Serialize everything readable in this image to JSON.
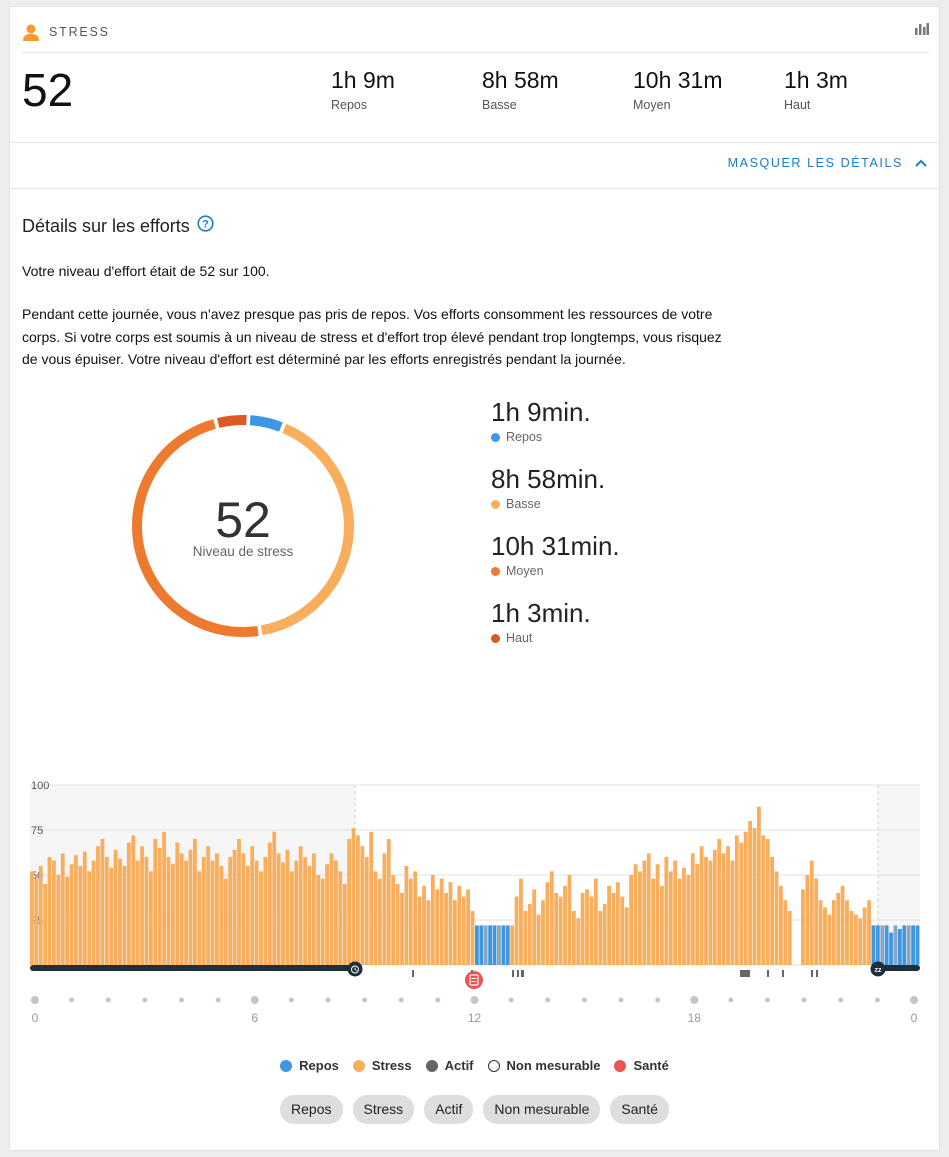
{
  "header": {
    "title": "STRESS"
  },
  "summary": {
    "score": "52",
    "stats": [
      {
        "value": "1h 9m",
        "label": "Repos"
      },
      {
        "value": "8h 58m",
        "label": "Basse"
      },
      {
        "value": "10h 31m",
        "label": "Moyen"
      },
      {
        "value": "1h 3m",
        "label": "Haut"
      }
    ]
  },
  "toggle_label": "MASQUER LES DÉTAILS",
  "details": {
    "title": "Détails sur les efforts",
    "intro": "Votre niveau d'effort était de 52 sur 100.",
    "paragraph_lines": [
      "Pendant cette journée, vous n'avez presque pas pris de repos. Vos efforts consomment les ressources de votre",
      "corps. Si votre corps est soumis à un niveau de stress et d'effort trop élevé pendant trop longtemps, vous risquez",
      "de vous épuiser. Votre niveau d'effort est déterminé par les efforts enregistrés pendant la journée."
    ]
  },
  "donut": {
    "value": "52",
    "label": "Niveau de stress",
    "legend": [
      {
        "value": "1h 9min.",
        "label": "Repos",
        "color": "#3d97e3",
        "minutes": 69
      },
      {
        "value": "8h 58min.",
        "label": "Basse",
        "color": "#f8ae5c",
        "minutes": 538
      },
      {
        "value": "10h 31min.",
        "label": "Moyen",
        "color": "#ee7a30",
        "minutes": 631
      },
      {
        "value": "1h 3min.",
        "label": "Haut",
        "color": "#dd5a22",
        "minutes": 63
      }
    ]
  },
  "chart_data": {
    "type": "bar",
    "y_ticks": [
      "100",
      "75",
      "50",
      "25"
    ],
    "ylim": [
      0,
      100
    ],
    "x_ticks": [
      "0",
      "6",
      "12",
      "18",
      "0"
    ],
    "series_colors": {
      "Repos": "#3d97e3",
      "Stress": "#f8ae5c",
      "Actif": "#666666",
      "Santé": "#ef5350"
    },
    "bars_stress": [
      52,
      48,
      55,
      45,
      60,
      58,
      50,
      62,
      49,
      56,
      61,
      55,
      63,
      52,
      58,
      66,
      70,
      60,
      54,
      64,
      59,
      55,
      68,
      72,
      58,
      66,
      60,
      52,
      70,
      65,
      74,
      60,
      56,
      68,
      62,
      58,
      64,
      70,
      52,
      60,
      66,
      58,
      62,
      55,
      48,
      60,
      64,
      70,
      62,
      55,
      66,
      58,
      52,
      60,
      68,
      74,
      62,
      57,
      64,
      52,
      58,
      66,
      60,
      55,
      62,
      50,
      48,
      56,
      62,
      58,
      52,
      45,
      70,
      76,
      72,
      66,
      60,
      74,
      52,
      48,
      62,
      70,
      50,
      45,
      40,
      55,
      48,
      52,
      38,
      44,
      36,
      50,
      42,
      48,
      40,
      46,
      36,
      44,
      38,
      42,
      30,
      35,
      40,
      28,
      30,
      26,
      24,
      28,
      26,
      22,
      38,
      48,
      30,
      34,
      42,
      28,
      36,
      46,
      52,
      40,
      38,
      44,
      50,
      30,
      26,
      40,
      42,
      38,
      48,
      30,
      34,
      44,
      40,
      46,
      38,
      32,
      50,
      56,
      52,
      58,
      62,
      48,
      56,
      44,
      60,
      52,
      58,
      48,
      54,
      50,
      62,
      56,
      66,
      60,
      58,
      64,
      70,
      62,
      66,
      58,
      72,
      68,
      74,
      80,
      76,
      88,
      72,
      70,
      60,
      52,
      44,
      36,
      30,
      0,
      0,
      42,
      50,
      58,
      48,
      36,
      32,
      28,
      36,
      40,
      44,
      36,
      30,
      28,
      26,
      32,
      36,
      30,
      26,
      30,
      22,
      18,
      24,
      20,
      22,
      26,
      28,
      30
    ],
    "legend": [
      "Repos",
      "Stress",
      "Actif",
      "Non mesurable",
      "Santé"
    ]
  },
  "filters": [
    "Repos",
    "Stress",
    "Actif",
    "Non mesurable",
    "Santé"
  ]
}
